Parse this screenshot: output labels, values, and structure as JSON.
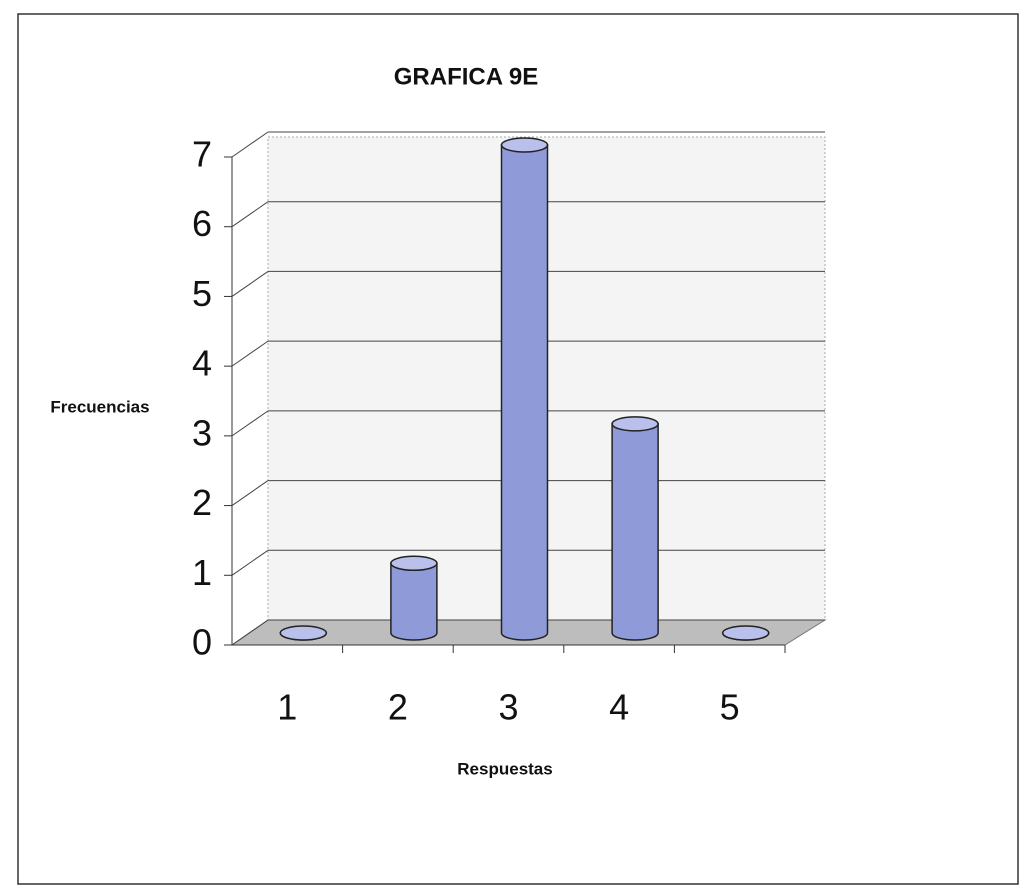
{
  "chart_data": {
    "type": "bar",
    "title": "GRAFICA 9E",
    "x_label": "Respuestas",
    "y_label": "Frecuencias",
    "categories": [
      "1",
      "2",
      "3",
      "4",
      "5"
    ],
    "values": [
      0,
      1,
      7,
      3,
      0
    ],
    "color": "#8f9ad8",
    "ylim": [
      0,
      7
    ],
    "yticks": [
      0,
      1,
      2,
      3,
      4,
      5,
      6,
      7
    ],
    "grid": true
  }
}
